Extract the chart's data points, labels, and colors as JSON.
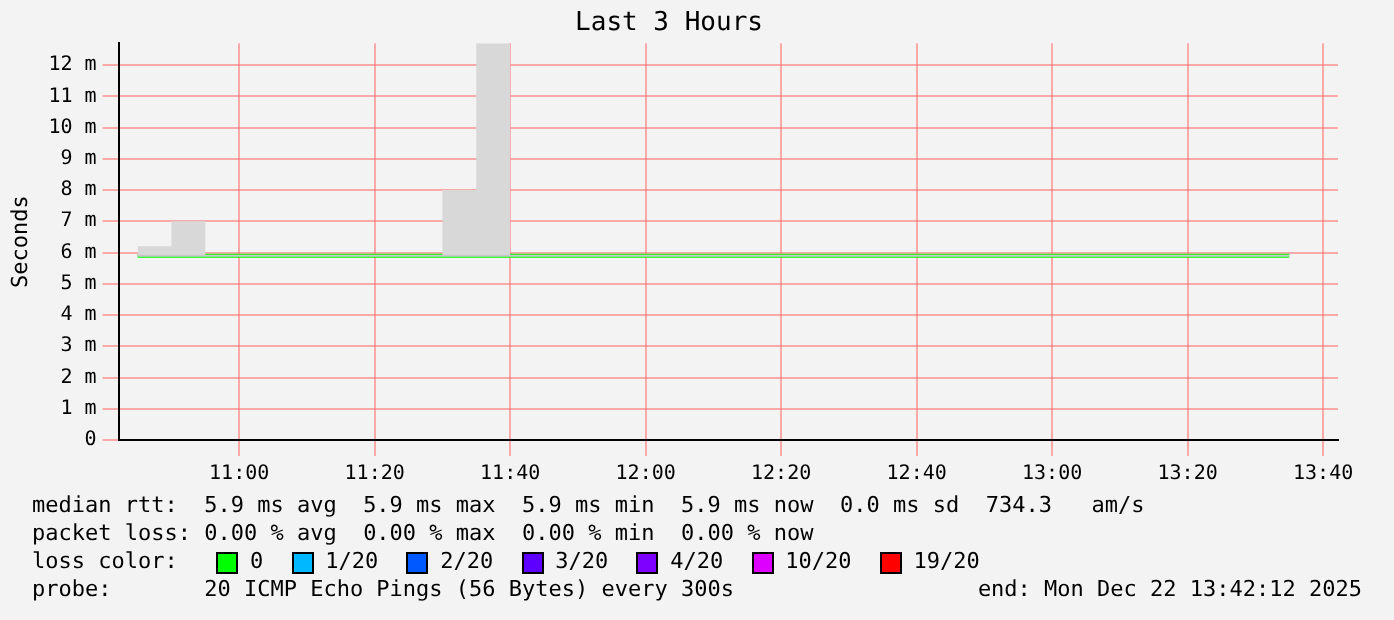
{
  "chart_data": {
    "type": "step",
    "title": "Last 3 Hours",
    "ylabel": "Seconds",
    "x": [
      10.75,
      10.8333,
      10.9167,
      11,
      11.0833,
      11.1667,
      11.25,
      11.3333,
      11.4167,
      11.5,
      11.5833,
      11.6667,
      11.75,
      11.8333,
      11.9167,
      12,
      12.0833,
      12.1667,
      12.25,
      12.3333,
      12.4167,
      12.5,
      12.5833,
      12.6667,
      12.75,
      12.8333,
      12.9167,
      13,
      13.0833,
      13.1667,
      13.25,
      13.3333,
      13.4167,
      13.5,
      13.5833
    ],
    "series": [
      {
        "name": "0",
        "color": "#00ff00",
        "values": [
          5.9,
          5.9,
          5.9,
          5.9,
          5.9,
          5.9,
          5.9,
          5.9,
          5.9,
          5.9,
          5.9,
          5.9,
          5.9,
          5.9,
          5.9,
          5.9,
          5.9,
          5.9,
          5.9,
          5.9,
          5.9,
          5.9,
          5.9,
          5.9,
          5.9,
          5.9,
          5.9,
          5.9,
          5.9,
          5.9,
          5.9,
          5.9,
          5.9,
          5.9,
          5.9
        ],
        "lower": [
          5.9,
          5.9,
          5.9,
          5.9,
          5.9,
          5.9,
          5.9,
          5.9,
          5.9,
          5.9,
          5.9,
          5.9,
          5.9,
          5.9,
          5.9,
          5.9,
          5.9,
          5.9,
          5.9,
          5.9,
          5.9,
          5.9,
          5.9,
          5.9,
          5.9,
          5.9,
          5.9,
          5.9,
          5.9,
          5.9,
          5.9,
          5.9,
          5.9,
          5.9,
          5.9
        ],
        "upper": [
          5.9,
          6.2,
          7.0,
          5.9,
          5.9,
          5.9,
          5.9,
          5.9,
          5.9,
          5.9,
          8.0,
          12.7,
          5.9,
          5.9,
          5.9,
          5.9,
          5.9,
          5.9,
          5.9,
          5.9,
          5.9,
          5.9,
          5.9,
          5.9,
          5.9,
          5.9,
          5.9,
          5.9,
          5.9,
          5.9,
          5.9,
          5.9,
          5.9,
          5.9,
          5.9
        ]
      },
      {
        "name": "1/20",
        "color": "#00b8ff",
        "values": [
          null,
          null,
          null,
          null,
          null,
          null,
          null,
          null,
          null,
          null,
          null,
          null,
          null,
          null,
          null,
          null,
          null,
          null,
          null,
          null,
          null,
          null,
          null,
          null,
          null,
          null,
          null,
          null,
          null,
          null,
          null,
          null,
          null,
          null,
          null
        ]
      },
      {
        "name": "2/20",
        "color": "#0059ff",
        "values": [
          null,
          null,
          null,
          null,
          null,
          null,
          null,
          null,
          null,
          null,
          null,
          null,
          null,
          null,
          null,
          null,
          null,
          null,
          null,
          null,
          null,
          null,
          null,
          null,
          null,
          null,
          null,
          null,
          null,
          null,
          null,
          null,
          null,
          null,
          null
        ]
      },
      {
        "name": "3/20",
        "color": "#5e00ff",
        "values": [
          null,
          null,
          null,
          null,
          null,
          null,
          null,
          null,
          null,
          null,
          null,
          null,
          null,
          null,
          null,
          null,
          null,
          null,
          null,
          null,
          null,
          null,
          null,
          null,
          null,
          null,
          null,
          null,
          null,
          null,
          null,
          null,
          null,
          null,
          null
        ]
      },
      {
        "name": "4/20",
        "color": "#7e00ff",
        "values": [
          null,
          null,
          null,
          null,
          null,
          null,
          null,
          null,
          null,
          null,
          null,
          null,
          null,
          null,
          null,
          null,
          null,
          null,
          null,
          null,
          null,
          null,
          null,
          null,
          null,
          null,
          null,
          null,
          null,
          null,
          null,
          null,
          null,
          null,
          null
        ]
      },
      {
        "name": "10/20",
        "color": "#dd00ff",
        "values": [
          null,
          null,
          null,
          null,
          null,
          null,
          null,
          null,
          null,
          null,
          null,
          null,
          null,
          null,
          null,
          null,
          null,
          null,
          null,
          null,
          null,
          null,
          null,
          null,
          null,
          null,
          null,
          null,
          null,
          null,
          null,
          null,
          null,
          null,
          null
        ]
      },
      {
        "name": "19/20",
        "color": "#ff0000",
        "values": [
          null,
          null,
          null,
          null,
          null,
          null,
          null,
          null,
          null,
          null,
          null,
          null,
          null,
          null,
          null,
          null,
          null,
          null,
          null,
          null,
          null,
          null,
          null,
          null,
          null,
          null,
          null,
          null,
          null,
          null,
          null,
          null,
          null,
          null,
          null
        ]
      }
    ],
    "xlim": [
      10.7033,
      13.7033
    ],
    "xticks": [
      {
        "value": 11,
        "label": "11:00"
      },
      {
        "value": 11.3333,
        "label": "11:20"
      },
      {
        "value": 11.6667,
        "label": "11:40"
      },
      {
        "value": 12,
        "label": "12:00"
      },
      {
        "value": 12.3333,
        "label": "12:20"
      },
      {
        "value": 12.6667,
        "label": "12:40"
      },
      {
        "value": 13,
        "label": "13:00"
      },
      {
        "value": 13.3333,
        "label": "13:20"
      },
      {
        "value": 13.6667,
        "label": "13:40"
      }
    ],
    "ylim": [
      0,
      12.7
    ],
    "yticks": [
      {
        "value": 0,
        "label": "0"
      },
      {
        "value": 1,
        "label": "1 m"
      },
      {
        "value": 2,
        "label": "2 m"
      },
      {
        "value": 3,
        "label": "3 m"
      },
      {
        "value": 4,
        "label": "4 m"
      },
      {
        "value": 5,
        "label": "5 m"
      },
      {
        "value": 6,
        "label": "6 m"
      },
      {
        "value": 7,
        "label": "7 m"
      },
      {
        "value": 8,
        "label": "8 m"
      },
      {
        "value": 9,
        "label": "9 m"
      },
      {
        "value": 10,
        "label": "10 m"
      },
      {
        "value": 11,
        "label": "11 m"
      },
      {
        "value": 12,
        "label": "12 m"
      }
    ],
    "grid": true,
    "legend": "bottom",
    "legend_title": "loss color:",
    "marker": "none",
    "line_style": "solid",
    "annotations": [
      "median rtt:  5.9 ms avg  5.9 ms max  5.9 ms min  5.9 ms now  0.0 ms sd  734.3   am/s",
      "packet loss: 0.00 % avg  0.00 % max  0.00 % min  0.00 % now",
      "probe:       20 ICMP Echo Pings (56 Bytes) every 300s",
      "end: Mon Dec 22 13:42:12 2025"
    ]
  }
}
